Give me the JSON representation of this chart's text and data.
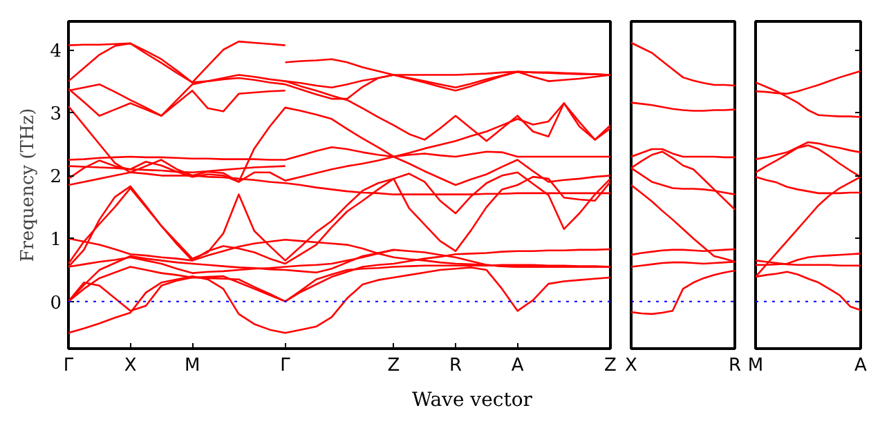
{
  "chart_data": [
    {
      "type": "line",
      "ylabel": "Frequency (THz)",
      "xlabel": "Wave vector",
      "categories": [
        "Γ",
        null,
        null,
        null,
        "X",
        null,
        null,
        null,
        "M",
        null,
        null,
        null,
        null,
        null,
        "Γ",
        null,
        null,
        null,
        null,
        null,
        null,
        "Z",
        null,
        null,
        null,
        "R",
        null,
        null,
        null,
        "A",
        null,
        null,
        null,
        null,
        null,
        "Z"
      ],
      "ylim": [
        -0.75,
        4.45
      ],
      "yticks": [
        0,
        1,
        2,
        3,
        4
      ],
      "grid": false,
      "ref_lines": [
        {
          "axis": "y",
          "value": 0,
          "color": "#0000ff",
          "line_style": "dotted"
        }
      ],
      "series": [
        {
          "color": "#ff0000",
          "values": [
            -0.5,
            -0.43,
            -0.35,
            -0.26,
            -0.18,
            0.14,
            0.3,
            0.35,
            0.4,
            0.35,
            0.2,
            -0.2,
            -0.36,
            -0.45,
            -0.5,
            -0.45,
            -0.4,
            -0.25,
            0.05,
            0.27,
            0.34,
            0.38,
            0.42,
            0.46,
            0.5,
            0.52,
            0.54,
            0.5,
            0.2,
            -0.15,
            0.02,
            0.28,
            0.32,
            0.34,
            0.36,
            0.38
          ]
        },
        {
          "color": "#ff0000",
          "values": [
            0,
            0.3,
            0.25,
            0.05,
            -0.15,
            -0.07,
            0.25,
            0.33,
            0.38,
            0.39,
            0.4,
            0.3,
            0.2,
            0.1,
            0,
            0.17,
            0.35,
            0.43,
            0.5,
            0.52,
            0.53,
            0.55,
            0.56,
            0.57,
            0.57,
            0.57,
            0.57,
            0.57,
            0.58,
            0.58,
            0.58,
            0.57,
            0.57,
            0.56,
            0.56,
            0.55
          ]
        },
        {
          "color": "#ff0000",
          "values": [
            0,
            0.2,
            0.37,
            0.46,
            0.55,
            0.5,
            0.45,
            0.42,
            0.38,
            0.37,
            0.36,
            0.35,
            0.23,
            0.12,
            0,
            0.15,
            0.27,
            0.39,
            0.47,
            0.55,
            0.58,
            0.6,
            0.64,
            0.68,
            0.71,
            0.75,
            0.76,
            0.77,
            0.79,
            0.8,
            0.8,
            0.81,
            0.81,
            0.82,
            0.82,
            0.83
          ]
        },
        {
          "color": "#ff0000",
          "values": [
            0,
            0.26,
            0.5,
            0.61,
            0.72,
            0.68,
            0.65,
            0.62,
            0.6,
            0.58,
            0.56,
            0.54,
            0.53,
            0.51,
            0.5,
            0.48,
            0.46,
            0.52,
            0.62,
            0.72,
            0.77,
            0.82,
            0.8,
            0.78,
            0.74,
            0.7,
            0.64,
            0.58,
            0.56,
            0.55,
            0.55,
            0.55,
            0.55,
            0.55,
            0.55,
            0.55
          ]
        },
        {
          "color": "#ff0000",
          "values": [
            0.55,
            0.59,
            0.63,
            0.66,
            0.7,
            0.65,
            0.6,
            0.52,
            0.45,
            0.47,
            0.48,
            0.5,
            0.52,
            0.53,
            0.55,
            0.57,
            0.58,
            0.6,
            0.65,
            0.7,
            0.76,
            0.82,
            null,
            null,
            null,
            null,
            null,
            null,
            null,
            null,
            null,
            null,
            null,
            null,
            null,
            null
          ]
        },
        {
          "color": "#ff0000",
          "values": [
            0.55,
            0.82,
            1.3,
            1.66,
            1.83,
            1.52,
            1.2,
            0.94,
            0.68,
            0.78,
            1.08,
            1.7,
            1.12,
            0.88,
            0.65,
            0.87,
            1.1,
            1.28,
            1.53,
            1.76,
            1.88,
            1.95,
            1.48,
            1.22,
            0.96,
            0.8,
            1.13,
            1.5,
            1.78,
            1.85,
            1.98,
            1.95,
            1.65,
            1.62,
            1.6,
            1.9
          ]
        },
        {
          "color": "#ff0000",
          "values": [
            0.6,
            0.95,
            1.23,
            1.5,
            1.8,
            1.5,
            1.2,
            0.91,
            0.65,
            0.8,
            0.88,
            0.84,
            0.78,
            0.68,
            0.6,
            0.75,
            0.9,
            1.18,
            1.43,
            1.6,
            1.78,
            1.95,
            2.03,
            1.9,
            1.6,
            1.4,
            1.67,
            1.88,
            2.0,
            2.05,
            1.87,
            1.69,
            1.15,
            1.4,
            1.7,
            1.95
          ]
        },
        {
          "color": "#ff0000",
          "values": [
            1.0,
            0.95,
            0.9,
            0.83,
            0.75,
            0.73,
            0.7,
            0.68,
            0.65,
            0.73,
            0.8,
            0.87,
            0.92,
            0.95,
            0.98,
            0.96,
            0.94,
            0.92,
            0.9,
            0.84,
            0.76,
            0.7,
            0.67,
            0.65,
            0.62,
            0.6,
            0.59,
            0.58,
            0.56,
            0.55,
            0.55,
            0.55,
            0.55,
            0.55,
            0.55,
            0.55
          ]
        },
        {
          "color": "#ff0000",
          "values": [
            1.85,
            1.9,
            1.95,
            2.0,
            2.05,
            2.03,
            2.0,
            2.0,
            2.0,
            1.98,
            1.97,
            1.95,
            1.93,
            1.9,
            1.88,
            1.85,
            1.81,
            1.78,
            1.75,
            1.73,
            1.72,
            1.7,
            1.7,
            1.7,
            1.7,
            1.7,
            1.7,
            1.71,
            1.71,
            1.72,
            1.72,
            1.72,
            1.72,
            1.72,
            1.72,
            1.72
          ]
        },
        {
          "color": "#ff0000",
          "values": [
            1.95,
            2.12,
            2.24,
            2.15,
            2.1,
            2.22,
            2.16,
            2.06,
            1.98,
            2.02,
            2.0,
            1.9,
            2.05,
            2.05,
            1.92,
            1.98,
            2.04,
            2.1,
            2.15,
            2.19,
            2.24,
            2.3,
            2.19,
            2.07,
            1.96,
            1.85,
            1.94,
            2.02,
            2.14,
            2.25,
            2.07,
            1.9,
            1.93,
            1.95,
            1.98,
            2.0
          ]
        },
        {
          "color": "#ff0000",
          "values": [
            2.15,
            2.14,
            2.13,
            2.12,
            2.1,
            2.09,
            2.08,
            2.06,
            2.05,
            2.07,
            2.09,
            2.11,
            2.13,
            2.14,
            2.15,
            null,
            null,
            null,
            null,
            null,
            null,
            null,
            null,
            null,
            null,
            null,
            null,
            null,
            null,
            null,
            null,
            null,
            null,
            null,
            null,
            null
          ]
        },
        {
          "color": "#ff0000",
          "values": [
            2.25,
            2.26,
            2.28,
            2.29,
            2.3,
            2.29,
            2.29,
            2.28,
            2.27,
            2.27,
            2.26,
            2.26,
            2.26,
            2.25,
            2.25,
            2.32,
            2.39,
            2.45,
            2.42,
            2.37,
            2.33,
            2.3,
            2.33,
            2.35,
            2.32,
            2.3,
            2.34,
            2.38,
            2.37,
            2.3,
            2.3,
            2.3,
            2.3,
            2.3,
            2.3,
            2.3
          ]
        },
        {
          "color": "#ff0000",
          "values": [
            3.1,
            2.8,
            2.5,
            2.2,
            2.05,
            2.15,
            2.25,
            2.1,
            2.0,
            2.06,
            2.04,
            1.9,
            2.43,
            2.78,
            3.08,
            3.03,
            2.97,
            2.9,
            2.74,
            2.59,
            2.45,
            2.3,
            2.36,
            2.43,
            2.49,
            2.55,
            2.63,
            2.7,
            2.8,
            2.9,
            2.81,
            2.86,
            3.15,
            2.78,
            2.57,
            2.75
          ]
        },
        {
          "color": "#ff0000",
          "values": [
            3.35,
            3.4,
            3.45,
            3.33,
            3.2,
            3.08,
            2.95,
            3.15,
            3.35,
            3.07,
            3.02,
            3.3,
            3.32,
            3.34,
            3.35,
            null,
            null,
            null,
            null,
            null,
            null,
            null,
            null,
            null,
            null,
            null,
            null,
            null,
            null,
            null,
            null,
            null,
            null,
            null,
            null,
            null
          ]
        },
        {
          "color": "#ff0000",
          "values": [
            3.38,
            3.17,
            2.95,
            3.05,
            3.15,
            3.05,
            2.95,
            3.2,
            3.45,
            3.5,
            3.55,
            3.6,
            3.57,
            3.53,
            3.5,
            3.47,
            3.43,
            3.4,
            3.45,
            3.51,
            3.55,
            3.6,
            3.54,
            3.48,
            3.41,
            3.35,
            3.42,
            3.5,
            3.58,
            3.65,
            3.57,
            3.5,
            3.52,
            3.54,
            3.57,
            3.6
          ]
        },
        {
          "color": "#ff0000",
          "values": [
            3.5,
            3.71,
            3.92,
            4.06,
            4.1,
            3.98,
            3.85,
            3.67,
            3.48,
            3.5,
            3.53,
            3.55,
            3.52,
            3.48,
            3.45,
            3.37,
            3.29,
            3.22,
            3.22,
            3.41,
            3.55,
            3.6,
            3.6,
            3.6,
            3.6,
            3.6,
            3.61,
            3.62,
            3.64,
            3.65,
            3.64,
            3.64,
            3.63,
            3.62,
            3.61,
            3.6
          ]
        },
        {
          "color": "#ff0000",
          "values": [
            4.07,
            4.08,
            4.08,
            4.09,
            4.1,
            3.94,
            3.79,
            3.63,
            3.48,
            3.74,
            4.0,
            4.13,
            4.11,
            4.09,
            4.07,
            null,
            null,
            null,
            null,
            null,
            null,
            null,
            null,
            null,
            null,
            null,
            null,
            null,
            null,
            null,
            null,
            null,
            null,
            null,
            null,
            null
          ]
        },
        {
          "color": "#ff0000",
          "values": [
            null,
            null,
            null,
            null,
            null,
            null,
            null,
            null,
            null,
            null,
            null,
            null,
            null,
            null,
            3.8,
            3.82,
            3.83,
            3.85,
            3.8,
            3.72,
            3.66,
            3.6,
            3.55,
            3.5,
            3.45,
            3.4,
            3.46,
            3.53,
            3.59,
            3.65,
            3.64,
            3.63,
            3.62,
            3.61,
            3.61,
            3.6
          ]
        },
        {
          "color": "#ff0000",
          "values": [
            null,
            null,
            null,
            null,
            null,
            null,
            null,
            null,
            null,
            null,
            null,
            null,
            null,
            null,
            3.5,
            3.42,
            3.35,
            3.27,
            3.2,
            3.07,
            2.93,
            2.8,
            2.66,
            2.57,
            2.75,
            2.95,
            2.75,
            2.55,
            2.75,
            2.95,
            2.7,
            2.62,
            3.15,
            2.85,
            2.57,
            2.8
          ]
        }
      ]
    },
    {
      "type": "line",
      "tick_labels": "x",
      "categories": [
        "X",
        null,
        null,
        null,
        null,
        null,
        null,
        null,
        null,
        null,
        "R"
      ],
      "ylim": [
        -0.75,
        4.45
      ],
      "grid": false,
      "ref_lines": [
        {
          "axis": "y",
          "value": 0,
          "color": "#0000ff",
          "line_style": "dotted"
        }
      ],
      "series": [
        {
          "color": "#ff0000",
          "values": [
            -0.17,
            -0.19,
            -0.2,
            -0.18,
            -0.15,
            0.2,
            0.3,
            0.37,
            0.42,
            0.46,
            0.49
          ]
        },
        {
          "color": "#ff0000",
          "values": [
            0.55,
            0.57,
            0.59,
            0.61,
            0.62,
            0.62,
            0.61,
            0.6,
            0.61,
            0.62,
            0.63
          ]
        },
        {
          "color": "#ff0000",
          "values": [
            0.74,
            0.77,
            0.79,
            0.81,
            0.82,
            0.82,
            0.81,
            0.8,
            0.81,
            0.82,
            0.83
          ]
        },
        {
          "color": "#ff0000",
          "values": [
            1.85,
            1.72,
            1.59,
            1.44,
            1.3,
            1.15,
            1.0,
            0.86,
            0.72,
            0.68,
            0.63
          ]
        },
        {
          "color": "#ff0000",
          "values": [
            2.12,
            2.23,
            2.33,
            2.38,
            2.28,
            2.16,
            2.1,
            1.94,
            1.78,
            1.62,
            1.46
          ]
        },
        {
          "color": "#ff0000",
          "values": [
            2.3,
            2.36,
            2.42,
            2.42,
            2.35,
            2.3,
            2.3,
            2.3,
            2.3,
            2.29,
            2.29
          ]
        },
        {
          "color": "#ff0000",
          "values": [
            2.12,
            2.01,
            1.9,
            1.85,
            1.8,
            1.79,
            1.79,
            1.78,
            1.76,
            1.73,
            1.7
          ]
        },
        {
          "color": "#ff0000",
          "values": [
            3.16,
            3.14,
            3.12,
            3.09,
            3.06,
            3.04,
            3.03,
            3.03,
            3.04,
            3.04,
            3.05
          ]
        },
        {
          "color": "#ff0000",
          "values": [
            4.11,
            4.03,
            3.95,
            3.82,
            3.69,
            3.56,
            3.51,
            3.47,
            3.44,
            3.44,
            3.43
          ]
        }
      ]
    },
    {
      "type": "line",
      "tick_labels": "x",
      "categories": [
        "M",
        null,
        null,
        null,
        null,
        null,
        null,
        null,
        null,
        null,
        "A"
      ],
      "ylim": [
        -0.75,
        4.45
      ],
      "yticks": [
        {
          "value": 0,
          "label": null
        },
        {
          "value": 1,
          "label": null
        },
        {
          "value": 2,
          "label": null
        },
        {
          "value": 3,
          "label": null
        },
        {
          "value": 4,
          "label": null
        }
      ],
      "grid": false,
      "ref_lines": [
        {
          "axis": "y",
          "value": 0,
          "color": "#0000ff",
          "line_style": "dotted"
        }
      ],
      "series": [
        {
          "color": "#ff0000",
          "values": [
            0.39,
            0.42,
            0.44,
            0.47,
            0.43,
            0.36,
            0.3,
            0.2,
            0.1,
            -0.08,
            -0.14
          ]
        },
        {
          "color": "#ff0000",
          "values": [
            0.39,
            0.58,
            0.77,
            0.96,
            1.15,
            1.34,
            1.53,
            1.68,
            1.8,
            1.89,
            1.98
          ]
        },
        {
          "color": "#ff0000",
          "values": [
            0.65,
            0.63,
            0.61,
            0.59,
            0.58,
            0.58,
            0.58,
            0.58,
            0.57,
            0.57,
            0.57
          ]
        },
        {
          "color": "#ff0000",
          "values": [
            0.58,
            0.58,
            0.59,
            0.6,
            0.66,
            0.7,
            0.72,
            0.73,
            0.74,
            0.75,
            0.76
          ]
        },
        {
          "color": "#ff0000",
          "values": [
            1.98,
            1.93,
            1.89,
            1.82,
            1.78,
            1.75,
            1.72,
            1.72,
            1.72,
            1.73,
            1.73
          ]
        },
        {
          "color": "#ff0000",
          "values": [
            2.05,
            2.15,
            2.24,
            2.34,
            2.44,
            2.48,
            2.42,
            2.31,
            2.19,
            2.08,
            1.98
          ]
        },
        {
          "color": "#ff0000",
          "values": [
            2.26,
            2.29,
            2.33,
            2.37,
            2.45,
            2.53,
            2.51,
            2.47,
            2.44,
            2.4,
            2.37
          ]
        },
        {
          "color": "#ff0000",
          "values": [
            3.34,
            3.33,
            3.31,
            3.3,
            3.34,
            3.39,
            3.44,
            3.5,
            3.56,
            3.61,
            3.66
          ]
        },
        {
          "color": "#ff0000",
          "values": [
            3.48,
            3.41,
            3.34,
            3.25,
            3.16,
            3.04,
            2.96,
            2.95,
            2.94,
            2.94,
            2.93
          ]
        }
      ]
    }
  ]
}
